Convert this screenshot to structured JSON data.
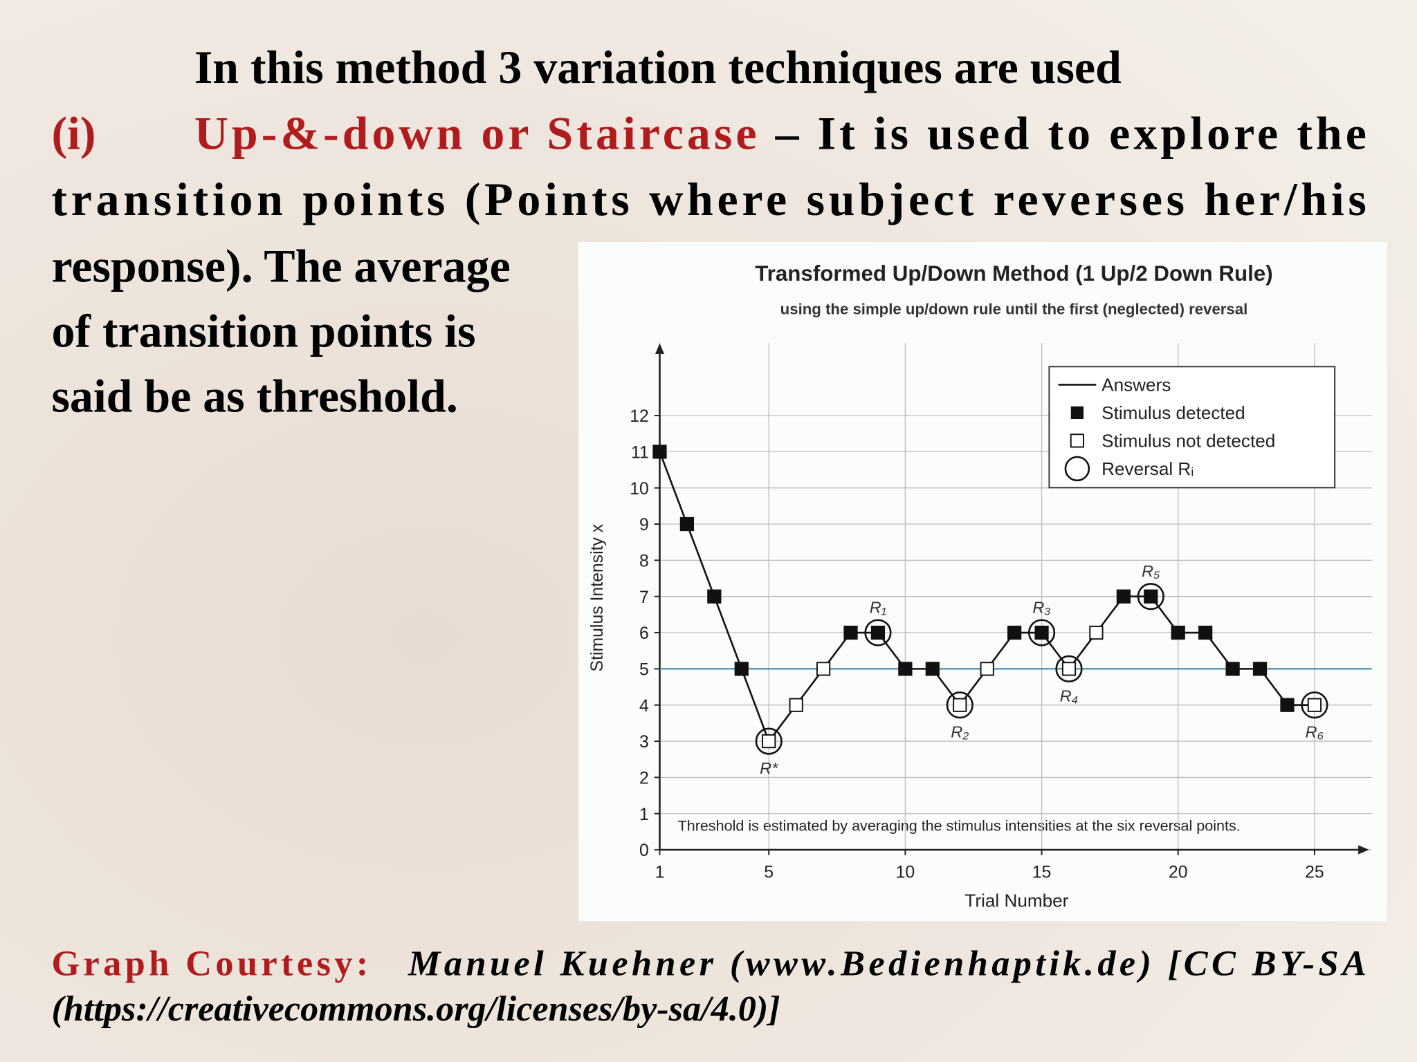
{
  "slide": {
    "heading": "In this method 3 variation techniques are used",
    "item_marker": "(i)",
    "term": "Up-&-down or Staircase",
    "lines": [
      " – It is used to explore the",
      "transition points (Points where subject reverses her/his",
      "response). The average",
      "of transition points is",
      "said be as threshold."
    ],
    "credit_label": "Graph Courtesy:",
    "credit_lines": [
      "Manuel Kuehner (www.Bedienhaptik.de) [CC BY-SA",
      "(https://creativecommons.org/licenses/by-sa/4.0)]"
    ]
  },
  "chart_data": {
    "type": "line",
    "title": "Transformed Up/Down Method (1 Up/2 Down Rule)",
    "subtitle": "using the simple up/down rule until the first (neglected) reversal",
    "x_label": "Trial Number",
    "y_label": "Stimulus Intensity x",
    "annotation": "Threshold is estimated by averaging the stimulus intensities at the six reversal points.",
    "x": [
      1,
      2,
      3,
      4,
      5,
      6,
      7,
      8,
      9,
      10,
      11,
      12,
      13,
      14,
      15,
      16,
      17,
      18,
      19,
      20,
      21,
      22,
      23,
      24,
      25
    ],
    "values": [
      11,
      9,
      7,
      5,
      3,
      4,
      5,
      6,
      6,
      5,
      5,
      4,
      5,
      6,
      6,
      5,
      6,
      7,
      7,
      6,
      6,
      5,
      5,
      4,
      4
    ],
    "detected": [
      true,
      true,
      true,
      true,
      false,
      false,
      false,
      true,
      true,
      true,
      true,
      false,
      false,
      true,
      true,
      false,
      false,
      true,
      true,
      true,
      true,
      true,
      true,
      true,
      false
    ],
    "reversals": [
      {
        "x": 5,
        "label": "R*",
        "pos": "below"
      },
      {
        "x": 9,
        "label": "R₁",
        "pos": "above"
      },
      {
        "x": 12,
        "label": "R₂",
        "pos": "below"
      },
      {
        "x": 15,
        "label": "R₃",
        "pos": "above"
      },
      {
        "x": 16,
        "label": "R₄",
        "pos": "below"
      },
      {
        "x": 19,
        "label": "R₅",
        "pos": "above"
      },
      {
        "x": 25,
        "label": "R₆",
        "pos": "below"
      }
    ],
    "threshold": 5,
    "threshold_color": "#2e7fa8",
    "color": "#111111",
    "legend": [
      "Answers",
      "Stimulus detected",
      "Stimulus not detected",
      "Reversal Rᵢ"
    ],
    "xlim": [
      1,
      27
    ],
    "ylim": [
      0,
      14
    ],
    "xticks": [
      1,
      5,
      10,
      15,
      20,
      25
    ],
    "yticks": [
      0,
      1,
      2,
      3,
      4,
      5,
      6,
      7,
      8,
      9,
      10,
      11,
      12
    ],
    "grid": true
  }
}
